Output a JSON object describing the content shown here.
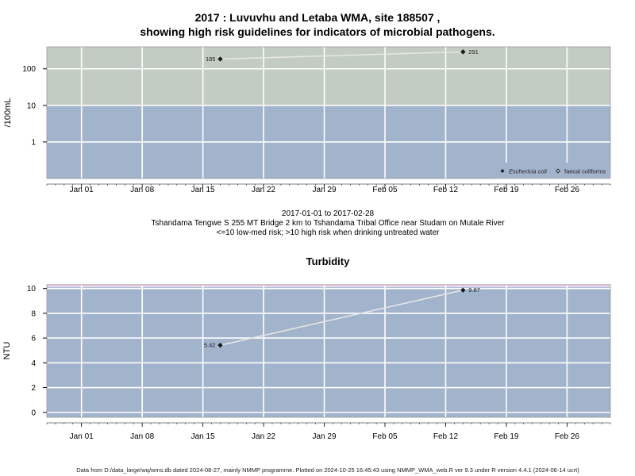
{
  "header": {
    "title_line1": "2017 : Luvuvhu and Letaba WMA, site 188507 ,",
    "title_line2": "showing high risk guidelines for indicators of microbial pathogens."
  },
  "subtitle": {
    "line1": "2017-01-01 to 2017-02-28",
    "line2": "Tshandama Tengwe S 255 MT Bridge 2 km to Tshandama Tribal Office near Studam on Mutale River",
    "line3": "<=10 low-med risk; >10 high risk when drinking untreated water"
  },
  "footer": {
    "text": "Data from D:/data_large/wq/wms.db dated 2024-08-27, mainly NMMP programme. Plotted on 2024-10-25 16:45:43 using NMMP_WMA_web.R ver 9.3 under R version 4.4.1 (2024-06-14 ucrt)"
  },
  "colors": {
    "low_risk": "#a2b3cc",
    "high_risk": "#c2ccc2",
    "grid": "#ffffff",
    "line": "#e6e6e6",
    "point": "#1a1a1a",
    "turb_limit": "#f0d8f0"
  },
  "chart_data": [
    {
      "type": "line",
      "title": "",
      "xlabel": "",
      "ylabel": "/100mL",
      "y_scale": "log",
      "ylim": [
        0.1,
        400
      ],
      "yticks": [
        1,
        10,
        100
      ],
      "ytick_labels": [
        "1",
        "10",
        "100"
      ],
      "xlim": [
        "2016-12-28",
        "2017-03-03"
      ],
      "xticks": [
        "2017-01-01",
        "2017-01-08",
        "2017-01-15",
        "2017-01-22",
        "2017-01-29",
        "2017-02-05",
        "2017-02-12",
        "2017-02-19",
        "2017-02-26"
      ],
      "xtick_labels": [
        "Jan 01",
        "Jan 08",
        "Jan 15",
        "Jan 22",
        "Jan 29",
        "Feb 05",
        "Feb 12",
        "Feb 19",
        "Feb 26"
      ],
      "guideline": 10,
      "series": [
        {
          "name": "Eschericia coli",
          "marker": "filled-diamond",
          "points": [
            {
              "x": "2017-01-17",
              "y": 185,
              "label": "185"
            },
            {
              "x": "2017-02-14",
              "y": 291,
              "label": "291"
            }
          ]
        },
        {
          "name": "faecal coliforms",
          "marker": "open-diamond",
          "points": []
        }
      ],
      "legend": "bottom-right",
      "grid": true
    },
    {
      "type": "line",
      "title": "Turbidity",
      "xlabel": "",
      "ylabel": "NTU",
      "y_scale": "linear",
      "ylim": [
        -0.4,
        10.3
      ],
      "yticks": [
        0,
        2,
        4,
        6,
        8,
        10
      ],
      "ytick_labels": [
        "0",
        "2",
        "4",
        "6",
        "8",
        "10"
      ],
      "xlim": [
        "2016-12-28",
        "2017-03-03"
      ],
      "xticks": [
        "2017-01-01",
        "2017-01-08",
        "2017-01-15",
        "2017-01-22",
        "2017-01-29",
        "2017-02-05",
        "2017-02-12",
        "2017-02-19",
        "2017-02-26"
      ],
      "xtick_labels": [
        "Jan 01",
        "Jan 08",
        "Jan 15",
        "Jan 22",
        "Jan 29",
        "Feb 05",
        "Feb 12",
        "Feb 19",
        "Feb 26"
      ],
      "series": [
        {
          "name": "",
          "marker": "filled-diamond",
          "points": [
            {
              "x": "2017-01-17",
              "y": 5.42,
              "label": "5.42"
            },
            {
              "x": "2017-02-14",
              "y": 9.87,
              "label": "9.87"
            }
          ]
        }
      ],
      "grid": true
    }
  ]
}
